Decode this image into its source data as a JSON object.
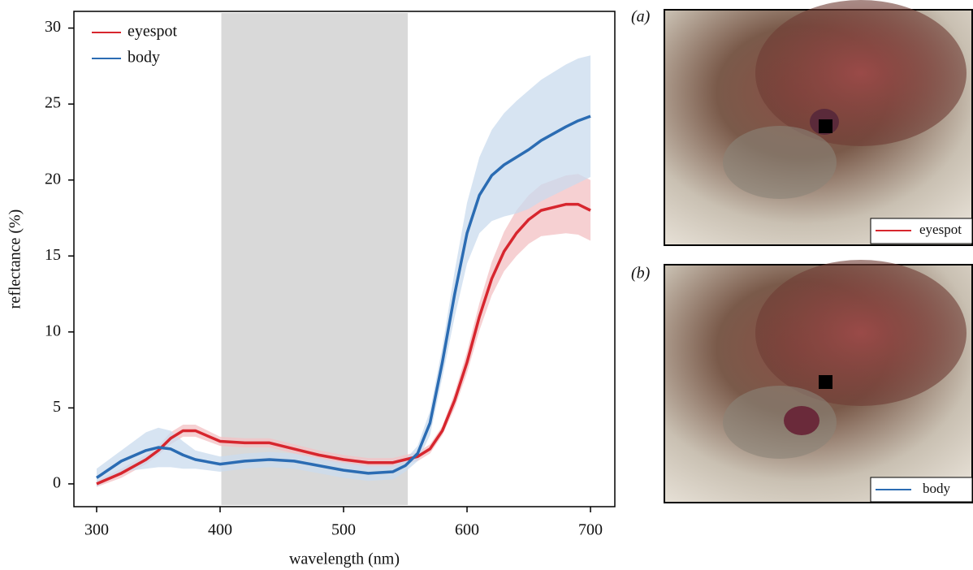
{
  "chart_data": {
    "type": "line",
    "xlabel": "wavelength (nm)",
    "ylabel": "reflectance (%)",
    "x": [
      300,
      320,
      340,
      350,
      360,
      370,
      380,
      400,
      420,
      440,
      460,
      480,
      500,
      520,
      540,
      550,
      560,
      570,
      580,
      590,
      600,
      610,
      620,
      630,
      640,
      650,
      660,
      680,
      690,
      700
    ],
    "series": [
      {
        "name": "eyespot",
        "color": "#d7262e",
        "band_color": "#f3c0c3",
        "values": [
          0,
          0.7,
          1.6,
          2.2,
          3.0,
          3.5,
          3.5,
          2.8,
          2.7,
          2.7,
          2.3,
          1.9,
          1.6,
          1.4,
          1.4,
          1.6,
          1.8,
          2.3,
          3.5,
          5.5,
          8.0,
          11.0,
          13.5,
          15.3,
          16.5,
          17.4,
          18.0,
          18.4,
          18.4,
          18.0
        ],
        "upper": [
          0.2,
          1.0,
          1.9,
          2.5,
          3.4,
          3.9,
          3.9,
          3.1,
          3.0,
          3.0,
          2.6,
          2.2,
          1.9,
          1.7,
          1.7,
          1.9,
          2.1,
          2.6,
          3.8,
          6.0,
          8.7,
          11.9,
          14.6,
          16.6,
          18.0,
          19.0,
          19.7,
          20.3,
          20.4,
          20.0
        ],
        "lower": [
          -0.2,
          0.4,
          1.3,
          1.9,
          2.6,
          3.1,
          3.1,
          2.5,
          2.4,
          2.4,
          2.0,
          1.6,
          1.3,
          1.1,
          1.1,
          1.3,
          1.5,
          2.0,
          3.2,
          5.0,
          7.3,
          10.1,
          12.4,
          14.0,
          15.0,
          15.8,
          16.3,
          16.5,
          16.4,
          16.0
        ]
      },
      {
        "name": "body",
        "color": "#2b6cb3",
        "band_color": "#c9dbee",
        "values": [
          0.4,
          1.5,
          2.2,
          2.4,
          2.3,
          1.9,
          1.6,
          1.3,
          1.5,
          1.6,
          1.5,
          1.2,
          0.9,
          0.7,
          0.8,
          1.2,
          2.0,
          4.0,
          8.0,
          12.5,
          16.5,
          19.0,
          20.3,
          21.0,
          21.5,
          22.0,
          22.6,
          23.5,
          23.9,
          24.2
        ],
        "upper": [
          1.0,
          2.2,
          3.4,
          3.7,
          3.5,
          2.8,
          2.2,
          1.8,
          2.0,
          2.1,
          2.0,
          1.7,
          1.4,
          1.2,
          1.2,
          1.6,
          2.5,
          4.8,
          9.0,
          14.0,
          18.5,
          21.5,
          23.3,
          24.4,
          25.2,
          25.9,
          26.6,
          27.6,
          28.0,
          28.2
        ],
        "lower": [
          -0.2,
          0.8,
          1.0,
          1.1,
          1.1,
          1.0,
          1.0,
          0.8,
          1.0,
          1.1,
          1.0,
          0.7,
          0.4,
          0.2,
          0.3,
          0.8,
          1.5,
          3.2,
          7.0,
          11.0,
          14.5,
          16.5,
          17.3,
          17.6,
          17.8,
          18.1,
          18.6,
          19.4,
          19.8,
          20.2
        ]
      }
    ],
    "shaded_region": [
      401,
      552
    ],
    "shaded_color": "#d9d9d9",
    "xlim": [
      281.6,
      719.7
    ],
    "xticks": [
      300,
      400,
      500,
      600,
      700
    ],
    "ylim": [
      -1.5,
      31.1
    ],
    "yticks": [
      0,
      5,
      10,
      15,
      20,
      25,
      30
    ],
    "legend": "upper left",
    "grid": false
  },
  "panels": [
    {
      "label": "(a)",
      "legend": "eyespot"
    },
    {
      "label": "(b)",
      "legend": "body"
    }
  ]
}
